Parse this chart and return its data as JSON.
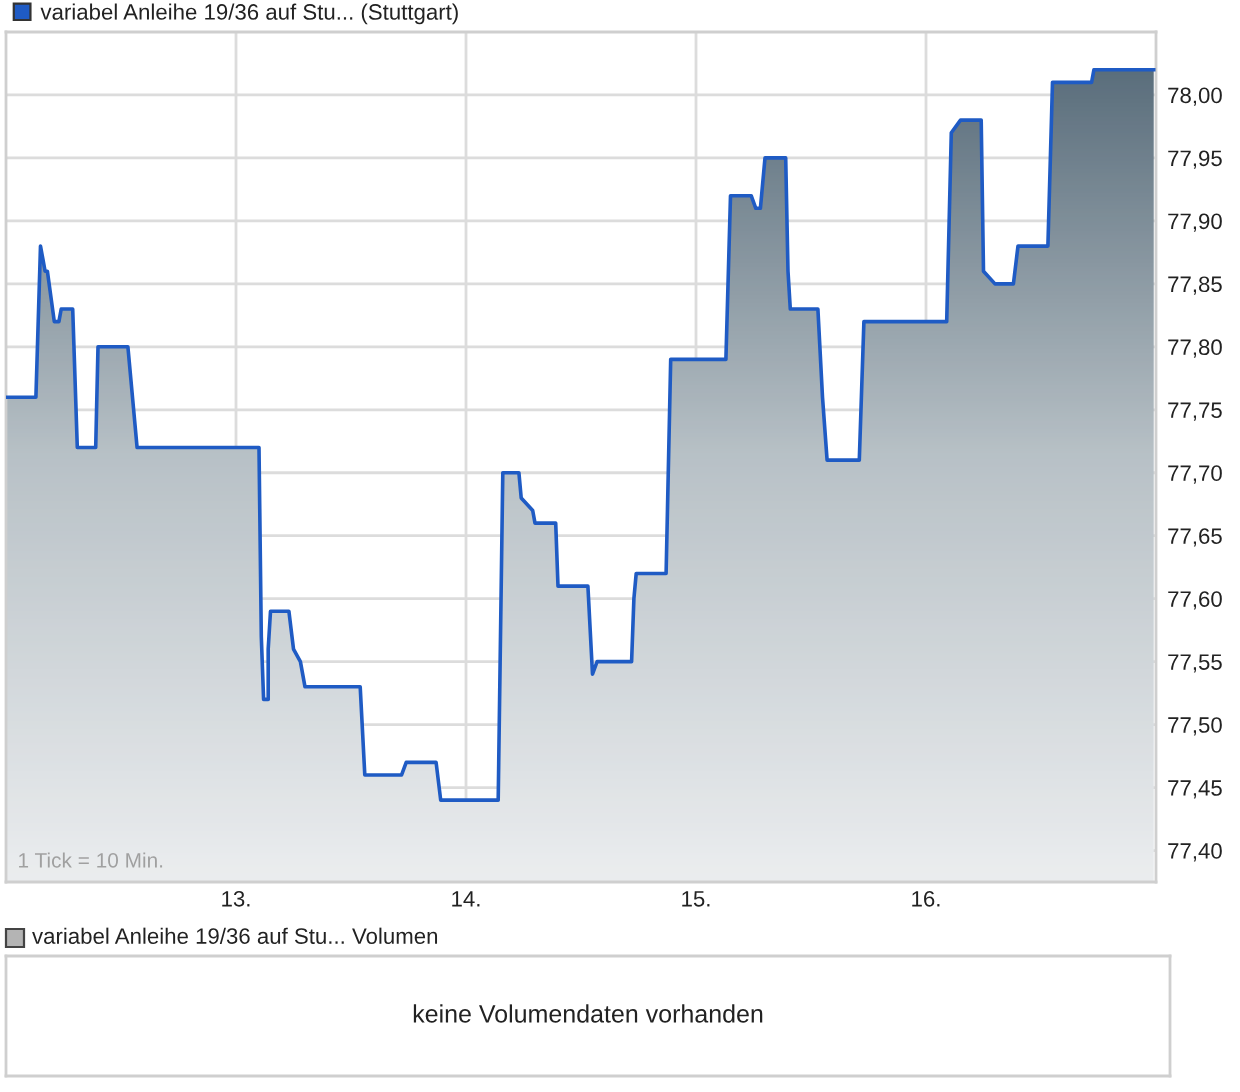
{
  "chart_data": [
    {
      "type": "area",
      "series": [
        {
          "name": "variabel Anleihe 19/36 auf Stu... (Stuttgart)",
          "color": "#1f5bc4",
          "x": [
            12.0,
            12.13,
            12.15,
            12.16,
            12.17,
            12.18,
            12.21,
            12.23,
            12.24,
            12.29,
            12.31,
            12.39,
            12.4,
            12.53,
            12.57,
            13.1,
            13.11,
            13.12,
            13.14,
            13.14,
            13.15,
            13.23,
            13.25,
            13.28,
            13.3,
            13.54,
            13.56,
            13.72,
            13.74,
            13.87,
            13.89,
            14.14,
            14.16,
            14.23,
            14.24,
            14.29,
            14.3,
            14.39,
            14.4,
            14.53,
            14.55,
            14.57,
            14.72,
            14.73,
            14.74,
            14.87,
            14.89,
            15.13,
            15.15,
            15.24,
            15.26,
            15.28,
            15.3,
            15.39,
            15.4,
            15.41,
            15.53,
            15.55,
            15.57,
            15.71,
            15.73,
            16.09,
            16.11,
            16.15,
            16.24,
            16.25,
            16.3,
            16.38,
            16.4,
            16.53,
            16.55,
            16.72,
            16.73,
            16.99
          ],
          "values": [
            77.76,
            77.76,
            77.88,
            77.87,
            77.86,
            77.86,
            77.82,
            77.82,
            77.83,
            77.83,
            77.72,
            77.72,
            77.8,
            77.8,
            77.72,
            77.72,
            77.57,
            77.52,
            77.52,
            77.56,
            77.59,
            77.59,
            77.56,
            77.55,
            77.53,
            77.53,
            77.46,
            77.46,
            77.47,
            77.47,
            77.44,
            77.44,
            77.7,
            77.7,
            77.68,
            77.67,
            77.66,
            77.66,
            77.61,
            77.61,
            77.54,
            77.55,
            77.55,
            77.6,
            77.62,
            77.62,
            77.79,
            77.79,
            77.92,
            77.92,
            77.91,
            77.91,
            77.95,
            77.95,
            77.86,
            77.83,
            77.83,
            77.76,
            77.71,
            77.71,
            77.82,
            77.82,
            77.97,
            77.98,
            77.98,
            77.86,
            77.85,
            77.85,
            77.88,
            77.88,
            78.01,
            78.01,
            78.02,
            78.02
          ]
        }
      ],
      "xlim": [
        12,
        17
      ],
      "xticks": [
        {
          "value": 13,
          "label": "13."
        },
        {
          "value": 14,
          "label": "14."
        },
        {
          "value": 15,
          "label": "15."
        },
        {
          "value": 16,
          "label": "16."
        }
      ],
      "ylim": [
        77.375,
        78.05
      ],
      "yticks": [
        {
          "value": 77.4,
          "label": "77,40"
        },
        {
          "value": 77.45,
          "label": "77,45"
        },
        {
          "value": 77.5,
          "label": "77,50"
        },
        {
          "value": 77.55,
          "label": "77,55"
        },
        {
          "value": 77.6,
          "label": "77,60"
        },
        {
          "value": 77.65,
          "label": "77,65"
        },
        {
          "value": 77.7,
          "label": "77,70"
        },
        {
          "value": 77.75,
          "label": "77,75"
        },
        {
          "value": 77.8,
          "label": "77,80"
        },
        {
          "value": 77.85,
          "label": "77,85"
        },
        {
          "value": 77.9,
          "label": "77,90"
        },
        {
          "value": 77.95,
          "label": "77,95"
        },
        {
          "value": 78.0,
          "label": "78,00"
        }
      ],
      "grid": true,
      "legend": "top left",
      "annotations": [
        "1 Tick = 10 Min."
      ]
    },
    {
      "type": "other",
      "title": "variabel Anleihe 19/36 auf Stu... Volumen",
      "annotations": [
        "keine Volumendaten vorhanden"
      ]
    }
  ]
}
